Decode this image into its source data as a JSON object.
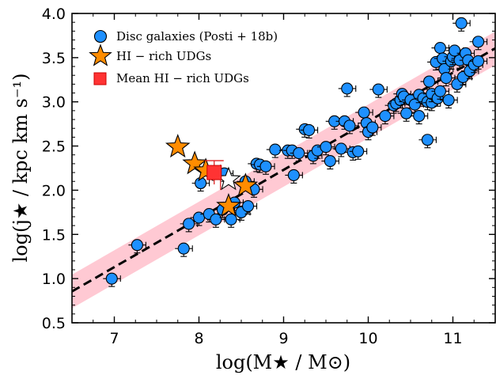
{
  "chart_data": {
    "type": "scatter",
    "xlabel": "log(M★ / M⊙)",
    "ylabel": "log(j★ / kpc km s⁻¹)",
    "xlim": [
      6.5,
      11.5
    ],
    "ylim": [
      0.5,
      4.0
    ],
    "x_ticks": [
      7,
      8,
      9,
      10,
      11
    ],
    "y_ticks": [
      0.5,
      1.0,
      1.5,
      2.0,
      2.5,
      3.0,
      3.5,
      4.0
    ],
    "x_tick_labels": [
      "7",
      "8",
      "9",
      "10",
      "11"
    ],
    "y_tick_labels": [
      "0.5",
      "1.0",
      "1.5",
      "2.0",
      "2.5",
      "3.0",
      "3.5",
      "4.0"
    ],
    "grid": false,
    "legend_position": "top-left",
    "legend": [
      {
        "label": "Disc galaxies (Posti + 18b)",
        "marker": "circle",
        "color": "#1e90ff"
      },
      {
        "label": "HI − rich UDGs",
        "marker": "star",
        "color": "#ff8c00"
      },
      {
        "label": "Mean HI − rich UDGs",
        "marker": "square",
        "color": "#ff3333"
      }
    ],
    "relation": {
      "slope": 0.55,
      "intercept": -2.72,
      "scatter": 0.19,
      "line_style": "dashed",
      "line_color": "#000000",
      "band_color": "#ffc0cb"
    },
    "series": [
      {
        "name": "Disc galaxies (Posti + 18b)",
        "marker": "circle",
        "color": "#1e90ff",
        "points": [
          [
            6.97,
            1.0
          ],
          [
            7.27,
            1.38
          ],
          [
            7.82,
            1.34
          ],
          [
            7.88,
            1.62
          ],
          [
            8.0,
            1.69
          ],
          [
            8.02,
            2.08
          ],
          [
            8.12,
            1.73
          ],
          [
            8.2,
            1.67
          ],
          [
            8.28,
            1.78
          ],
          [
            8.38,
            1.67
          ],
          [
            8.42,
            1.86
          ],
          [
            8.5,
            1.75
          ],
          [
            8.58,
            1.82
          ],
          [
            8.3,
            2.19
          ],
          [
            8.55,
            2.1
          ],
          [
            8.65,
            2.01
          ],
          [
            8.68,
            2.3
          ],
          [
            8.72,
            2.29
          ],
          [
            8.79,
            2.27
          ],
          [
            8.9,
            2.46
          ],
          [
            9.05,
            2.45
          ],
          [
            9.1,
            2.45
          ],
          [
            9.12,
            2.17
          ],
          [
            9.18,
            2.42
          ],
          [
            9.25,
            2.69
          ],
          [
            9.3,
            2.68
          ],
          [
            9.35,
            2.39
          ],
          [
            9.4,
            2.45
          ],
          [
            9.5,
            2.49
          ],
          [
            9.55,
            2.33
          ],
          [
            9.6,
            2.78
          ],
          [
            9.68,
            2.47
          ],
          [
            9.72,
            2.78
          ],
          [
            9.75,
            3.15
          ],
          [
            9.78,
            2.73
          ],
          [
            9.82,
            2.43
          ],
          [
            9.88,
            2.44
          ],
          [
            9.95,
            2.88
          ],
          [
            9.98,
            2.76
          ],
          [
            10.0,
            2.66
          ],
          [
            10.05,
            2.71
          ],
          [
            10.12,
            3.14
          ],
          [
            10.2,
            2.84
          ],
          [
            10.3,
            2.96
          ],
          [
            10.33,
            2.98
          ],
          [
            10.38,
            3.02
          ],
          [
            10.4,
            3.09
          ],
          [
            10.42,
            3.06
          ],
          [
            10.45,
            2.87
          ],
          [
            10.5,
            3.02
          ],
          [
            10.55,
            2.97
          ],
          [
            10.6,
            2.84
          ],
          [
            10.6,
            3.08
          ],
          [
            10.65,
            3.04
          ],
          [
            10.7,
            3.0
          ],
          [
            10.7,
            2.57
          ],
          [
            10.72,
            3.23
          ],
          [
            10.75,
            2.99
          ],
          [
            10.75,
            3.09
          ],
          [
            10.8,
            3.45
          ],
          [
            10.82,
            3.04
          ],
          [
            10.85,
            3.12
          ],
          [
            10.85,
            3.61
          ],
          [
            10.88,
            3.49
          ],
          [
            10.9,
            3.37
          ],
          [
            10.92,
            3.27
          ],
          [
            10.95,
            3.02
          ],
          [
            10.98,
            3.46
          ],
          [
            11.0,
            3.51
          ],
          [
            11.02,
            3.58
          ],
          [
            11.05,
            3.2
          ],
          [
            11.08,
            3.47
          ],
          [
            11.1,
            3.89
          ],
          [
            11.12,
            3.28
          ],
          [
            11.15,
            3.55
          ],
          [
            11.18,
            3.47
          ],
          [
            11.2,
            3.35
          ],
          [
            11.25,
            3.42
          ],
          [
            11.3,
            3.68
          ],
          [
            11.3,
            3.46
          ]
        ]
      },
      {
        "name": "HI − rich UDGs",
        "marker": "star",
        "color": "#ff8c00",
        "points": [
          [
            7.75,
            2.49
          ],
          [
            7.95,
            2.3
          ],
          [
            8.08,
            2.22
          ],
          [
            8.35,
            1.82
          ],
          [
            8.55,
            2.05
          ]
        ]
      },
      {
        "name": "White star",
        "marker": "star",
        "color": "#ffffff",
        "points": [
          [
            8.35,
            2.12
          ]
        ]
      },
      {
        "name": "Mean HI − rich UDGs",
        "marker": "square",
        "color": "#ff3333",
        "points": [
          [
            8.18,
            2.2
          ]
        ]
      }
    ]
  }
}
